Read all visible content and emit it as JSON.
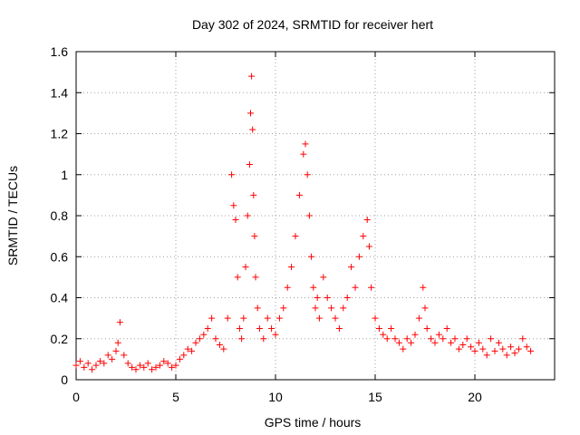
{
  "chart_data": {
    "type": "scatter",
    "title": "Day 302 of 2024, SRMTID for receiver hert",
    "xlabel": "GPS time / hours",
    "ylabel": "SRMTID / TECUs",
    "xlim": [
      0,
      24
    ],
    "ylim": [
      0,
      1.6
    ],
    "xticks": [
      0,
      5,
      10,
      15,
      20
    ],
    "xtick_labels": [
      "0",
      "5",
      "10",
      "15",
      "20"
    ],
    "yticks": [
      0,
      0.2,
      0.4,
      0.6,
      0.8,
      1.0,
      1.2,
      1.4,
      1.6
    ],
    "ytick_labels": [
      "0",
      "0.2",
      "0.4",
      "0.6",
      "0.8",
      "1",
      "1.2",
      "1.4",
      "1.6"
    ],
    "grid": true,
    "marker": "+",
    "color": "#ff0000",
    "series": [
      {
        "name": "SRMTID",
        "x": [
          0.0,
          0.2,
          0.4,
          0.6,
          0.8,
          1.0,
          1.2,
          1.4,
          1.6,
          1.8,
          2.0,
          2.1,
          2.2,
          2.4,
          2.6,
          2.8,
          3.0,
          3.2,
          3.4,
          3.6,
          3.8,
          4.0,
          4.2,
          4.4,
          4.6,
          4.8,
          5.0,
          5.2,
          5.4,
          5.6,
          5.8,
          6.0,
          6.2,
          6.4,
          6.6,
          6.8,
          7.0,
          7.2,
          7.4,
          7.6,
          7.8,
          7.9,
          8.0,
          8.1,
          8.2,
          8.3,
          8.4,
          8.5,
          8.6,
          8.7,
          8.75,
          8.8,
          8.85,
          8.9,
          8.95,
          9.0,
          9.1,
          9.2,
          9.4,
          9.6,
          9.8,
          10.0,
          10.2,
          10.4,
          10.6,
          10.8,
          11.0,
          11.2,
          11.4,
          11.5,
          11.6,
          11.7,
          11.8,
          11.9,
          12.0,
          12.1,
          12.2,
          12.4,
          12.6,
          12.8,
          13.0,
          13.2,
          13.4,
          13.6,
          13.8,
          14.0,
          14.2,
          14.4,
          14.6,
          14.7,
          14.8,
          15.0,
          15.2,
          15.4,
          15.6,
          15.8,
          16.0,
          16.2,
          16.4,
          16.6,
          16.8,
          17.0,
          17.2,
          17.4,
          17.5,
          17.6,
          17.8,
          18.0,
          18.2,
          18.4,
          18.6,
          18.8,
          19.0,
          19.2,
          19.4,
          19.6,
          19.8,
          20.0,
          20.2,
          20.4,
          20.6,
          20.8,
          21.0,
          21.2,
          21.4,
          21.6,
          21.8,
          22.0,
          22.2,
          22.4,
          22.6,
          22.8
        ],
        "y": [
          0.07,
          0.09,
          0.06,
          0.08,
          0.05,
          0.07,
          0.09,
          0.08,
          0.12,
          0.1,
          0.14,
          0.18,
          0.28,
          0.12,
          0.08,
          0.06,
          0.05,
          0.07,
          0.06,
          0.08,
          0.05,
          0.06,
          0.07,
          0.09,
          0.08,
          0.06,
          0.07,
          0.1,
          0.12,
          0.15,
          0.14,
          0.18,
          0.2,
          0.22,
          0.25,
          0.3,
          0.2,
          0.17,
          0.15,
          0.3,
          1.0,
          0.85,
          0.78,
          0.5,
          0.25,
          0.2,
          0.3,
          0.55,
          0.8,
          1.05,
          1.3,
          1.48,
          1.22,
          0.9,
          0.7,
          0.5,
          0.35,
          0.25,
          0.2,
          0.3,
          0.25,
          0.22,
          0.3,
          0.35,
          0.45,
          0.55,
          0.7,
          0.9,
          1.1,
          1.15,
          1.0,
          0.8,
          0.6,
          0.45,
          0.35,
          0.4,
          0.3,
          0.5,
          0.4,
          0.35,
          0.3,
          0.25,
          0.35,
          0.4,
          0.55,
          0.45,
          0.6,
          0.7,
          0.78,
          0.65,
          0.45,
          0.3,
          0.25,
          0.22,
          0.2,
          0.25,
          0.2,
          0.18,
          0.15,
          0.2,
          0.18,
          0.22,
          0.3,
          0.45,
          0.35,
          0.25,
          0.2,
          0.18,
          0.22,
          0.2,
          0.25,
          0.18,
          0.2,
          0.15,
          0.17,
          0.2,
          0.16,
          0.14,
          0.18,
          0.15,
          0.12,
          0.2,
          0.14,
          0.18,
          0.15,
          0.12,
          0.16,
          0.13,
          0.15,
          0.2,
          0.16,
          0.14
        ]
      }
    ]
  }
}
